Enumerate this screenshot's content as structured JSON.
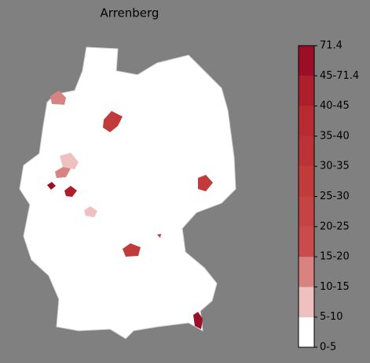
{
  "title": "Arrenberg",
  "legend": {
    "labels": [
      "0-5",
      "5-10",
      "10-15",
      "15-20",
      "20-25",
      "25-30",
      "30-35",
      "35-40",
      "40-45",
      "45-71.4",
      "71.4"
    ],
    "colors": [
      "#ffffff",
      "#efc0c0",
      "#d98282",
      "#c94b4b",
      "#c64343",
      "#c23b3b",
      "#bd3236",
      "#b72a31",
      "#ae1f2d",
      "#9c0d26"
    ]
  }
}
